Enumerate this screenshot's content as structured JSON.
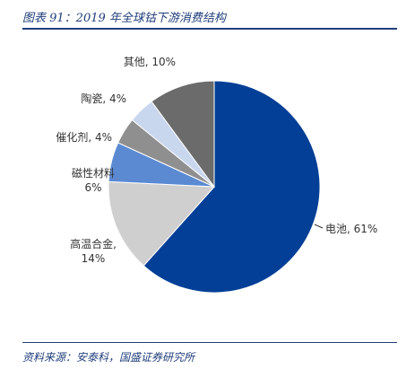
{
  "figure": {
    "title": "图表 91：2019 年全球钴下游消费结构",
    "source": "资料来源：安泰科，国盛证券研究所"
  },
  "chart_data": {
    "type": "pie",
    "title": "图表 91：2019 年全球钴下游消费结构",
    "start": "12 o'clock, clockwise",
    "slices": [
      {
        "name": "电池",
        "value": 61,
        "label": "电池, 61%",
        "color": "#033f96"
      },
      {
        "name": "高温合金",
        "value": 14,
        "label": "高温合金,\n14%",
        "color": "#cfcfcf"
      },
      {
        "name": "磁性材料",
        "value": 6,
        "label": "磁性材料\n6%",
        "color": "#5b8ad2"
      },
      {
        "name": "催化剂",
        "value": 4,
        "label": "催化剂, 4%",
        "color": "#8f8f8f"
      },
      {
        "name": "陶瓷",
        "value": 4,
        "label": "陶瓷, 4%",
        "color": "#c9d7ee"
      },
      {
        "name": "其他",
        "value": 10,
        "label": "其他, 10%",
        "color": "#6b6b6b"
      }
    ]
  }
}
